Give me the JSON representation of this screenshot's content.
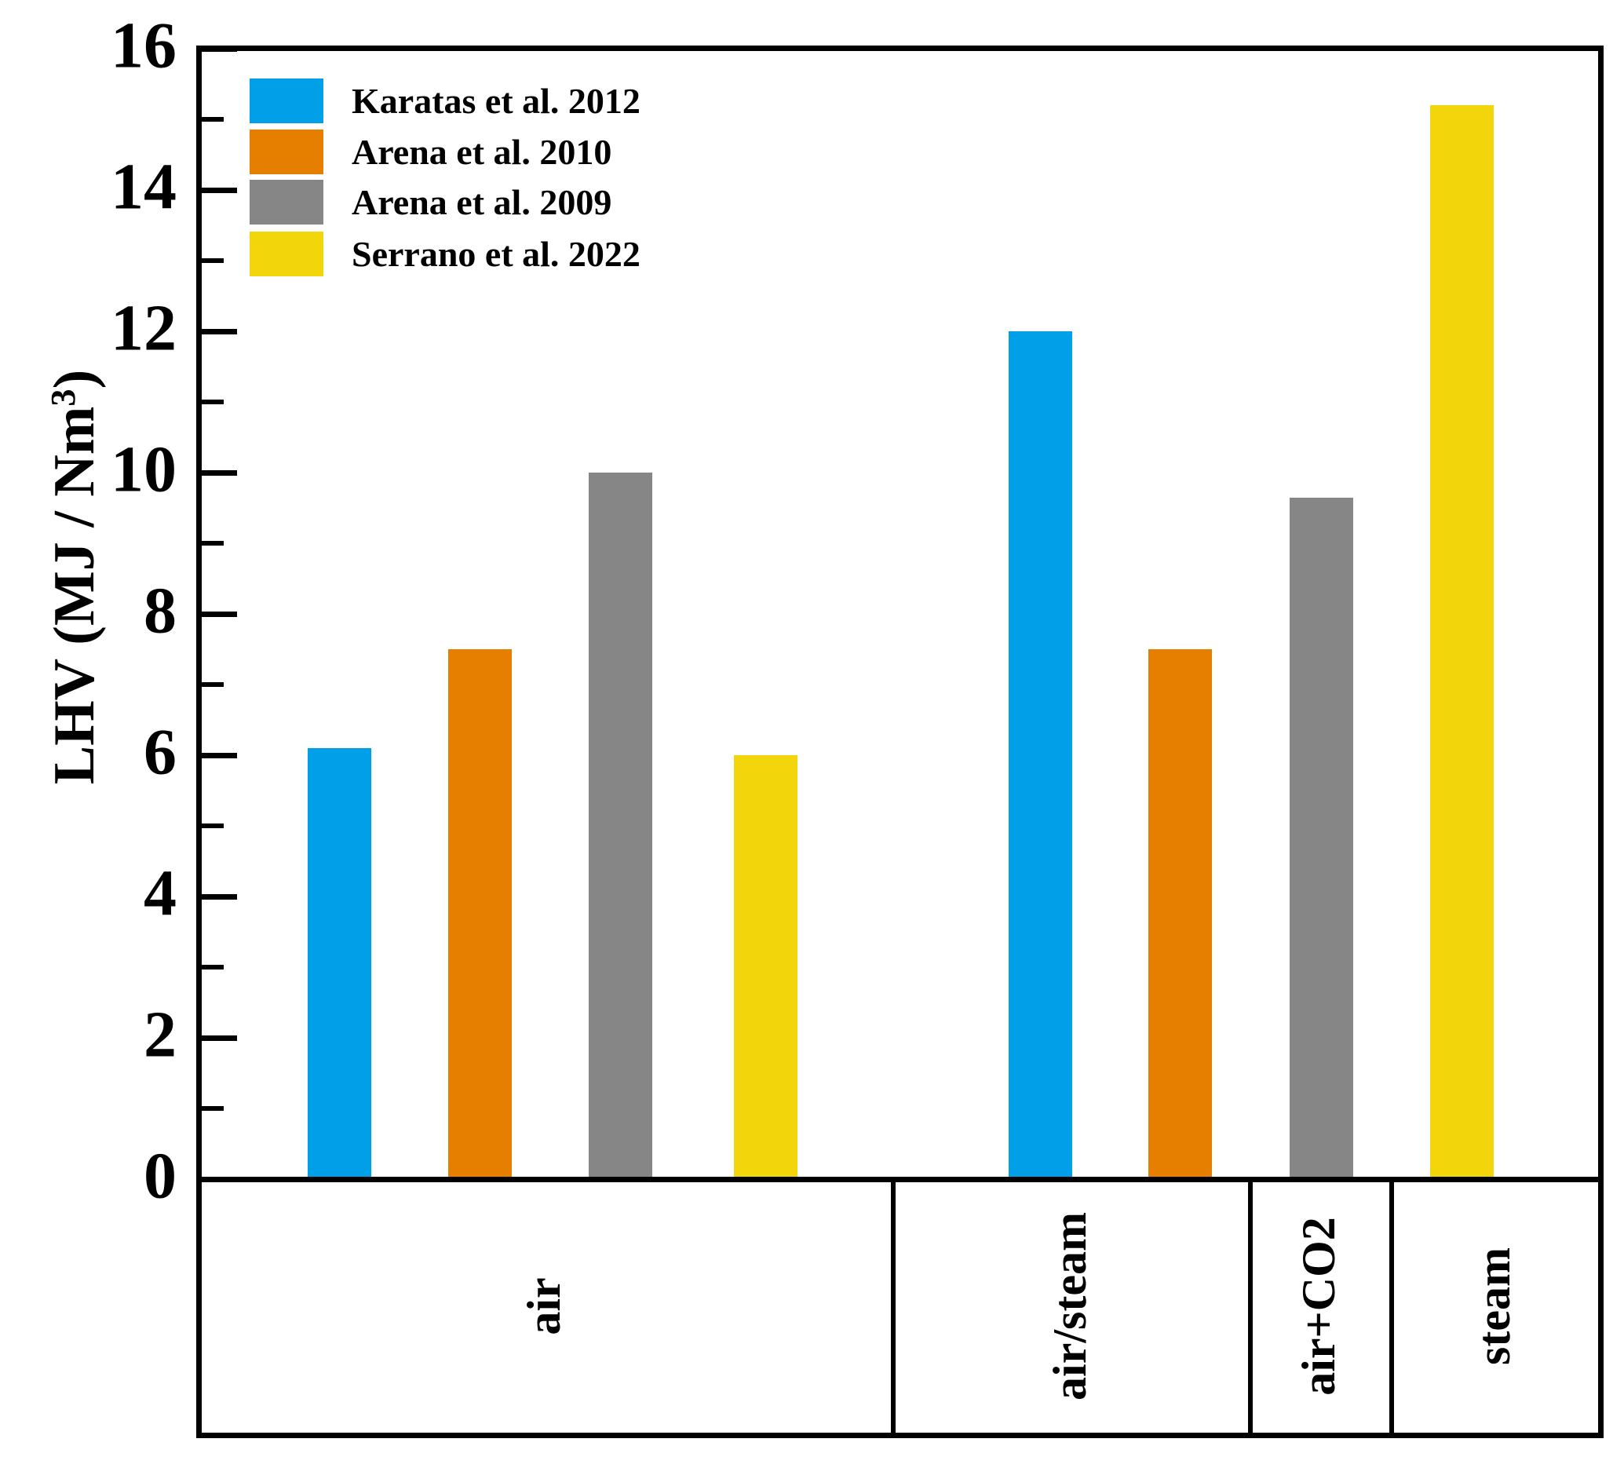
{
  "chart_data": {
    "type": "bar",
    "title": "",
    "ylabel": "LHV (MJ / Nm³)",
    "ylabel_parts": {
      "prefix": "LHV (MJ / Nm",
      "sup": "3",
      "suffix": ")"
    },
    "ylim": [
      0,
      16
    ],
    "yticks_major": [
      0,
      2,
      4,
      6,
      8,
      10,
      12,
      14,
      16
    ],
    "yticks_minor": [
      1,
      3,
      5,
      7,
      9,
      11,
      13,
      15
    ],
    "grid": false,
    "legend_position": "top-left",
    "series": [
      {
        "name": "Karatas et al. 2012",
        "color": "#009FE8"
      },
      {
        "name": "Arena et al. 2010",
        "color": "#E67E00"
      },
      {
        "name": "Arena et al. 2009",
        "color": "#868686"
      },
      {
        "name": "Serrano et al. 2022",
        "color": "#F2D50A"
      }
    ],
    "categories": [
      "air",
      "air/steam",
      "air+CO2",
      "steam"
    ],
    "bars": [
      {
        "category": "air",
        "series": "Karatas et al. 2012",
        "value": 6.1
      },
      {
        "category": "air",
        "series": "Arena et al. 2010",
        "value": 7.5
      },
      {
        "category": "air",
        "series": "Arena et al. 2009",
        "value": 10.0
      },
      {
        "category": "air",
        "series": "Serrano et al. 2022",
        "value": 6.0
      },
      {
        "category": "air/steam",
        "series": "Karatas et al. 2012",
        "value": 12.0
      },
      {
        "category": "air/steam",
        "series": "Arena et al. 2010",
        "value": 7.5
      },
      {
        "category": "air+CO2",
        "series": "Arena et al. 2009",
        "value": 9.65
      },
      {
        "category": "steam",
        "series": "Serrano et al. 2022",
        "value": 15.2
      }
    ]
  }
}
